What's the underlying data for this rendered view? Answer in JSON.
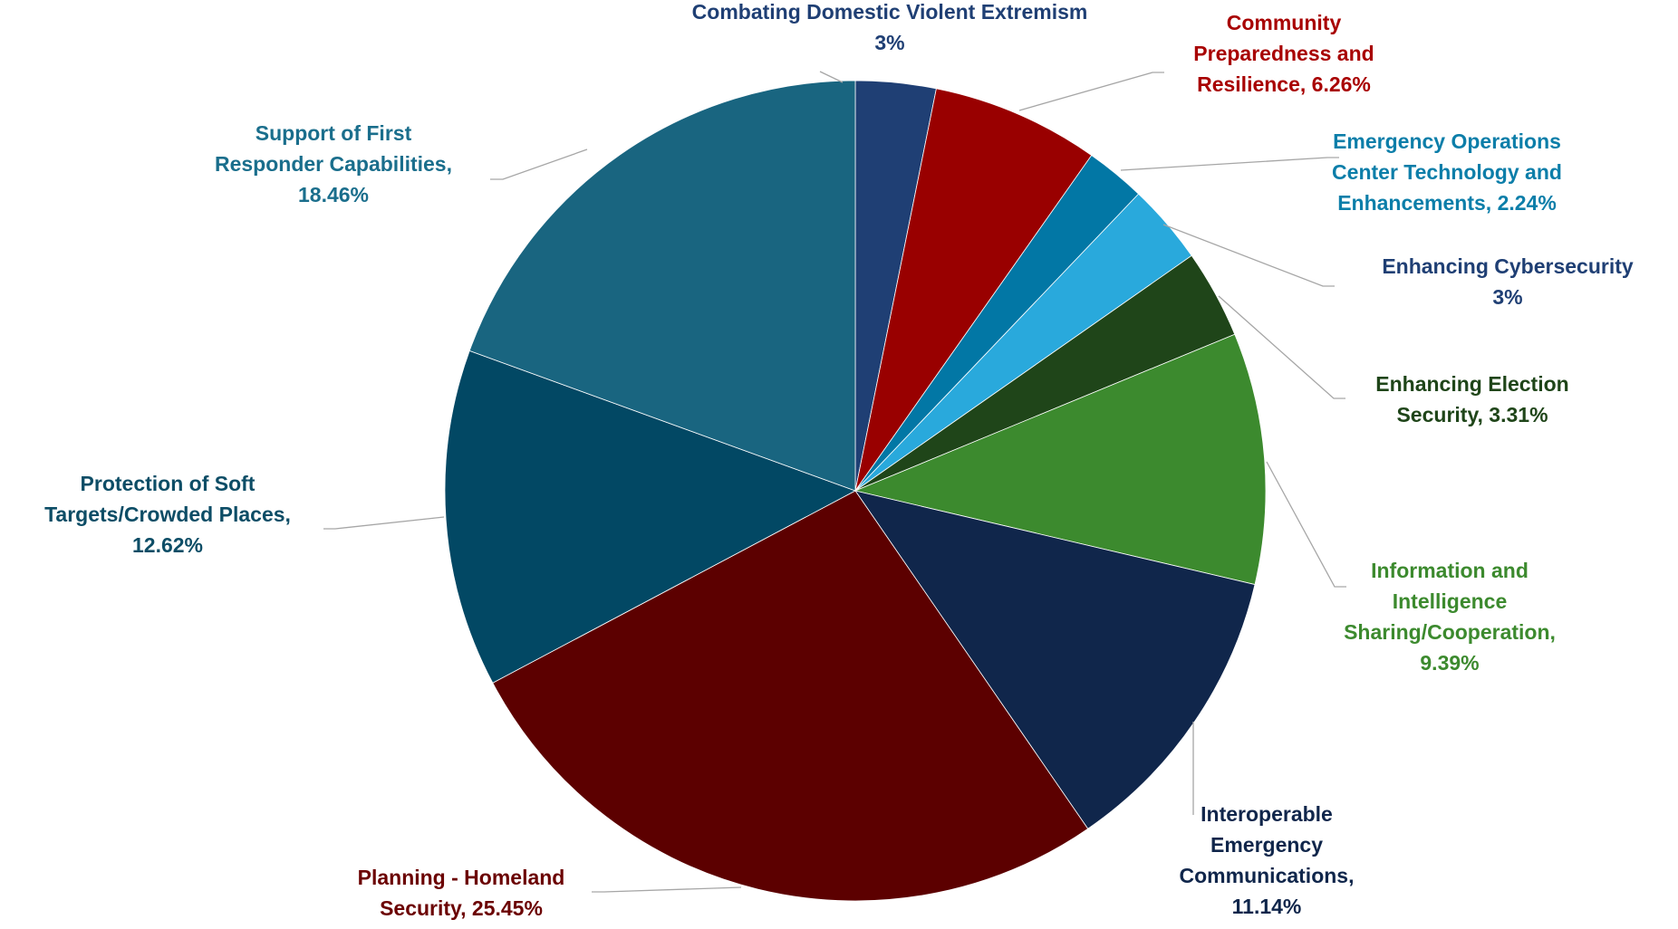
{
  "chart_data": {
    "type": "pie",
    "title": "",
    "slices": [
      {
        "label": "Combating Domestic Violent Extremism",
        "value": 3,
        "display": "3%",
        "color": "#1f3f74",
        "label_lines": [
          "Combating Domestic Violent Extremism",
          "3%"
        ]
      },
      {
        "label": "Community Preparedness and Resilience",
        "value": 6.26,
        "display": "6.26%",
        "color": "#990000",
        "label_lines": [
          "Community",
          "Preparedness and",
          "Resilience, 6.26%"
        ]
      },
      {
        "label": "Emergency Operations Center Technology and Enhancements",
        "value": 2.24,
        "display": "2.24%",
        "color": "#0277a5",
        "label_lines": [
          "Emergency Operations",
          "Center Technology and",
          "Enhancements, 2.24%"
        ]
      },
      {
        "label": "Enhancing Cybersecurity",
        "value": 3,
        "display": "3%",
        "color": "#29a9dc",
        "label_lines": [
          "Enhancing Cybersecurity",
          "3%"
        ]
      },
      {
        "label": "Enhancing Election Security",
        "value": 3.31,
        "display": "3.31%",
        "color": "#1f4519",
        "label_lines": [
          "Enhancing Election",
          "Security, 3.31%"
        ]
      },
      {
        "label": "Information and Intelligence Sharing/Cooperation",
        "value": 9.39,
        "display": "9.39%",
        "color": "#3c8a2e",
        "label_lines": [
          "Information and",
          "Intelligence",
          "Sharing/Cooperation,",
          "9.39%"
        ]
      },
      {
        "label": "Interoperable Emergency Communications",
        "value": 11.14,
        "display": "11.14%",
        "color": "#10264b",
        "label_lines": [
          "Interoperable",
          "Emergency",
          "Communications,",
          "11.14%"
        ]
      },
      {
        "label": "Planning - Homeland Security",
        "value": 25.45,
        "display": "25.45%",
        "color": "#5c0000",
        "label_lines": [
          "Planning - Homeland",
          "Security, 25.45%"
        ]
      },
      {
        "label": "Protection of Soft Targets/Crowded Places",
        "value": 12.62,
        "display": "12.62%",
        "color": "#024864",
        "label_lines": [
          "Protection of Soft",
          "Targets/Crowded Places,",
          "12.62%"
        ]
      },
      {
        "label": "Support of First Responder Capabilities",
        "value": 18.46,
        "display": "18.46%",
        "color": "#196580",
        "label_lines": [
          "Support of First",
          "Responder Capabilities,",
          "18.46%"
        ]
      }
    ],
    "label_colors": [
      "#1f3f74",
      "#a80000",
      "#0c7ea9",
      "#1f3f74",
      "#1f4519",
      "#3c8a2e",
      "#10264b",
      "#6b0000",
      "#0d4d66",
      "#1a6e8c"
    ]
  }
}
